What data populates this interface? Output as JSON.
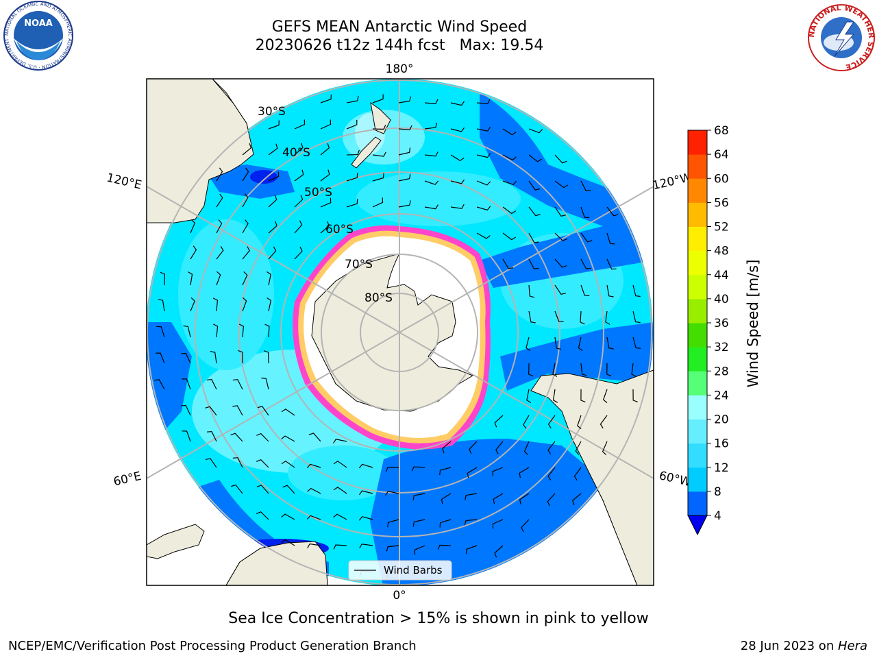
{
  "title": {
    "line1": "GEFS MEAN Antarctic Wind Speed",
    "line2": "20230626 t12z 144h fcst   Max: 19.54"
  },
  "map": {
    "projection": "south-polar-stereographic",
    "meridian_labels": {
      "top": "180°",
      "bottom": "0°",
      "upper_left": "120°E",
      "upper_right": "120°W",
      "lower_left": "60°E",
      "lower_right": "60°W"
    },
    "parallel_labels": [
      "30°S",
      "40°S",
      "50°S",
      "60°S",
      "70°S",
      "80°S"
    ],
    "legend_label": "Wind Barbs",
    "colors": {
      "land": "#eeecdc",
      "ice_edge": "#ff44cc",
      "ice_inner": "#ffffff",
      "gridline": "#b4b4b4"
    }
  },
  "colorbar": {
    "label": "Wind Speed [m/s]",
    "ticks": [
      "4",
      "8",
      "12",
      "16",
      "20",
      "24",
      "28",
      "32",
      "36",
      "40",
      "44",
      "48",
      "52",
      "56",
      "60",
      "64",
      "68"
    ],
    "colors": [
      "#0066ff",
      "#00ccff",
      "#33ddff",
      "#66eeff",
      "#99ffff",
      "#55ff77",
      "#22ee22",
      "#44dd00",
      "#99ee00",
      "#ccff00",
      "#eeff00",
      "#ffee00",
      "#ffbb00",
      "#ff8800",
      "#ff5500",
      "#ff2200"
    ],
    "under_color": "#0000ee"
  },
  "logos": {
    "noaa": "NOAA",
    "noaa_ring": "NATIONAL OCEANIC AND ATMOSPHERIC ADMINISTRATION · U.S. DEPARTMENT OF COMMERCE",
    "nws_ring": "NATIONAL WEATHER SERVICE"
  },
  "subtitle": "Sea Ice Concentration > 15% is shown in pink to yellow",
  "footer": {
    "left": "NCEP/EMC/Verification Post Processing Product Generation Branch",
    "date": "28 Jun 2023 on ",
    "host": "Hera"
  }
}
